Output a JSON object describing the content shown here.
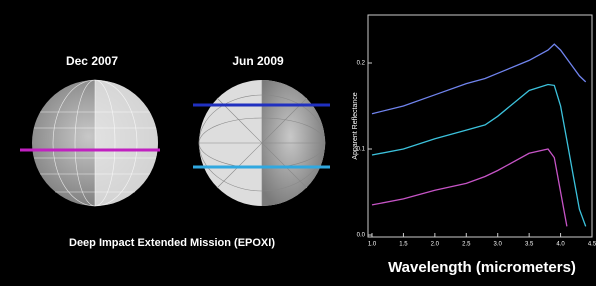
{
  "panels": {
    "left_title": "Dec 2007",
    "right_title": "Jun 2009",
    "caption": "Deep Impact Extended Mission (EPOXI)"
  },
  "chart_data": {
    "type": "line",
    "ylabel": "Apparent Reflectance",
    "xlabel": "Wavelength (micrometers)",
    "x": [
      1.0,
      1.5,
      2.0,
      2.5,
      2.8,
      3.0,
      3.5,
      3.8,
      3.9,
      4.0,
      4.1,
      4.2,
      4.3,
      4.4
    ],
    "series": [
      {
        "color": "#7084ee",
        "values": [
          0.141,
          0.15,
          0.163,
          0.176,
          0.182,
          0.188,
          0.203,
          0.215,
          0.222,
          0.215,
          0.205,
          0.195,
          0.185,
          0.178
        ]
      },
      {
        "color": "#3cc2dc",
        "values": [
          0.093,
          0.1,
          0.112,
          0.122,
          0.128,
          0.138,
          0.168,
          0.175,
          0.174,
          0.15,
          0.11,
          0.07,
          0.03,
          0.01
        ]
      },
      {
        "color": "#c654c6",
        "values": [
          0.035,
          0.042,
          0.052,
          0.06,
          0.068,
          0.075,
          0.095,
          0.1,
          0.09,
          0.05,
          0.01,
          null,
          null,
          null
        ]
      }
    ],
    "xlim": [
      1.0,
      4.5
    ],
    "xticks": [
      {
        "value": 1,
        "label": "1.0"
      },
      {
        "value": 1.5,
        "label": "1.5"
      },
      {
        "value": 2,
        "label": "2.0"
      },
      {
        "value": 2.5,
        "label": "2.5"
      },
      {
        "value": 3,
        "label": "3.0"
      },
      {
        "value": 3.5,
        "label": "3.5"
      },
      {
        "value": 4,
        "label": "4.0"
      },
      {
        "value": 4.5,
        "label": "4.5"
      }
    ],
    "ylim": [
      0,
      0.255
    ],
    "yticks": [
      {
        "value": 0,
        "label": "0.0"
      },
      0.1,
      0.2
    ]
  }
}
